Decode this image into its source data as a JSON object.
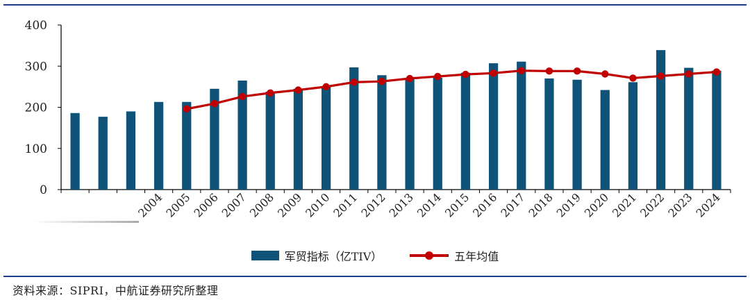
{
  "chart_data": {
    "type": "bar",
    "x": [
      "",
      "",
      "",
      "2004",
      "2005",
      "2006",
      "2007",
      "2008",
      "2009",
      "2010",
      "2011",
      "2012",
      "2013",
      "2014",
      "2015",
      "2016",
      "2017",
      "2018",
      "2019",
      "2020",
      "2021",
      "2022",
      "2023",
      "2024"
    ],
    "series": [
      {
        "name": "军贸指标（亿TIV）",
        "type": "bar",
        "color": "#0f5478",
        "values": [
          186,
          177,
          190,
          213,
          213,
          245,
          265,
          238,
          245,
          251,
          297,
          278,
          272,
          272,
          284,
          307,
          311,
          270,
          267,
          242,
          261,
          339,
          296,
          289
        ]
      },
      {
        "name": "五年均值",
        "type": "line",
        "color": "#c00000",
        "values": [
          null,
          null,
          null,
          null,
          196,
          209,
          226,
          235,
          242,
          250,
          261,
          263,
          270,
          275,
          280,
          283,
          289,
          288,
          288,
          281,
          271,
          276,
          281,
          286
        ]
      }
    ],
    "ylim": [
      0,
      400
    ],
    "yticks": [
      0,
      100,
      200,
      300,
      400
    ],
    "legend_position": "bottom",
    "grid": false
  },
  "source_text": "资料来源：SIPRI，中航证券研究所整理"
}
